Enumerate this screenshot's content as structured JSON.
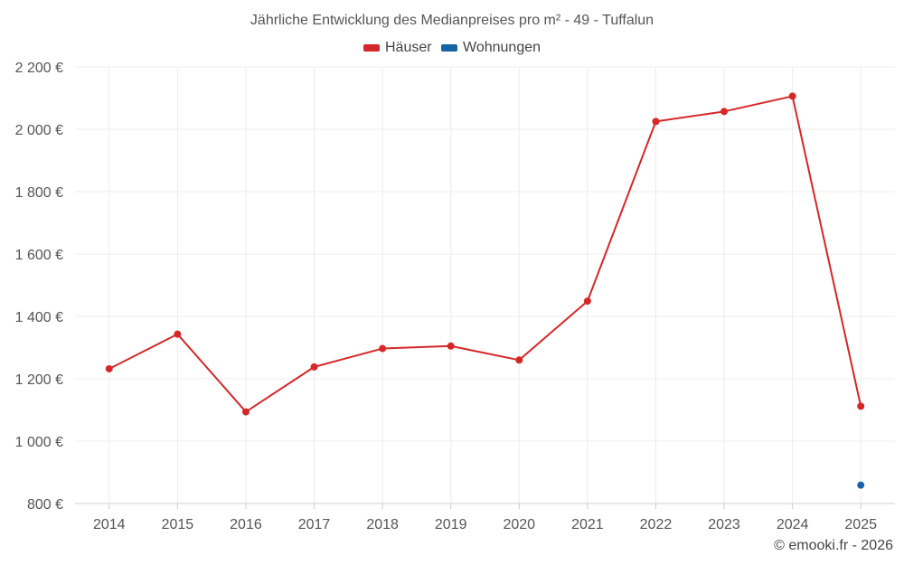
{
  "chart_data": {
    "type": "line",
    "title": "Jährliche Entwicklung des Medianpreises pro m² - 49 - Tuffalun",
    "categories": [
      "2014",
      "2015",
      "2016",
      "2017",
      "2018",
      "2019",
      "2020",
      "2021",
      "2022",
      "2023",
      "2024",
      "2025"
    ],
    "series": [
      {
        "name": "Häuser",
        "color": "#d62728",
        "values": [
          1232,
          1343,
          1094,
          1238,
          1297,
          1305,
          1260,
          1449,
          2025,
          2057,
          2106,
          1112
        ]
      },
      {
        "name": "Wohnungen",
        "color": "#1565a6",
        "values": [
          null,
          null,
          null,
          null,
          null,
          null,
          null,
          null,
          null,
          null,
          null,
          859
        ]
      }
    ],
    "ylim": [
      800,
      2200
    ],
    "yticks": [
      800,
      1000,
      1200,
      1400,
      1600,
      1800,
      2000,
      2200
    ],
    "ytick_labels": [
      "800 €",
      "1 000 €",
      "1 200 €",
      "1 400 €",
      "1 600 €",
      "1 800 €",
      "2 000 €",
      "2 200 €"
    ],
    "grid": true,
    "legend_position": "top-center"
  },
  "credit": "© emooki.fr - 2026"
}
